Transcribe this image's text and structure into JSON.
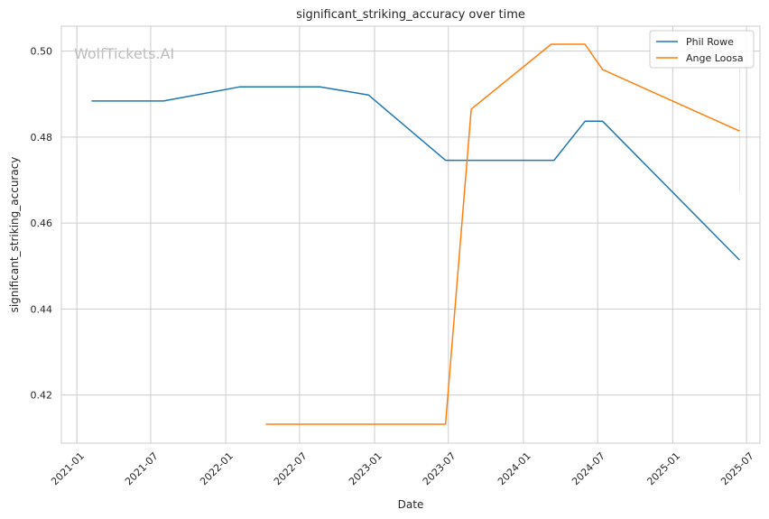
{
  "chart_data": {
    "type": "line",
    "title": "significant_striking_accuracy over time",
    "xlabel": "Date",
    "ylabel": "significant_striking_accuracy",
    "watermark": "WolfTickets.AI",
    "xlim": [
      "2020-11-24",
      "2025-08-03"
    ],
    "ylim": [
      0.4088,
      0.5058
    ],
    "xticks": [
      "2021-01",
      "2021-07",
      "2022-01",
      "2022-07",
      "2023-01",
      "2023-07",
      "2024-01",
      "2024-07",
      "2025-01",
      "2025-07"
    ],
    "yticks": [
      0.42,
      0.44,
      0.46,
      0.48,
      0.5
    ],
    "grid": true,
    "legend_position": "top-right",
    "series": [
      {
        "name": "Phil Rowe",
        "color": "#1f77b4",
        "points": [
          [
            "2021-02-06",
            0.4884
          ],
          [
            "2021-08-01",
            0.4884
          ],
          [
            "2022-02-05",
            0.4917
          ],
          [
            "2022-08-20",
            0.4917
          ],
          [
            "2022-12-17",
            0.4898
          ],
          [
            "2023-06-24",
            0.4746
          ],
          [
            "2024-03-16",
            0.4746
          ],
          [
            "2024-05-31",
            0.4837
          ],
          [
            "2024-07-13",
            0.4837
          ],
          [
            "2025-06-14",
            0.4514
          ]
        ]
      },
      {
        "name": "Ange Loosa",
        "color": "#ff7f0e",
        "points": [
          [
            "2022-04-09",
            0.4132
          ],
          [
            "2023-06-24",
            0.4132
          ],
          [
            "2023-08-26",
            0.4865
          ],
          [
            "2024-03-09",
            0.5016
          ],
          [
            "2024-05-31",
            0.5016
          ],
          [
            "2024-07-13",
            0.4957
          ],
          [
            "2025-06-14",
            0.4814
          ]
        ]
      }
    ],
    "error_bar": {
      "date": "2025-06-14",
      "low": 0.4674,
      "high": 0.4964,
      "color": "#ff7f0e"
    }
  }
}
